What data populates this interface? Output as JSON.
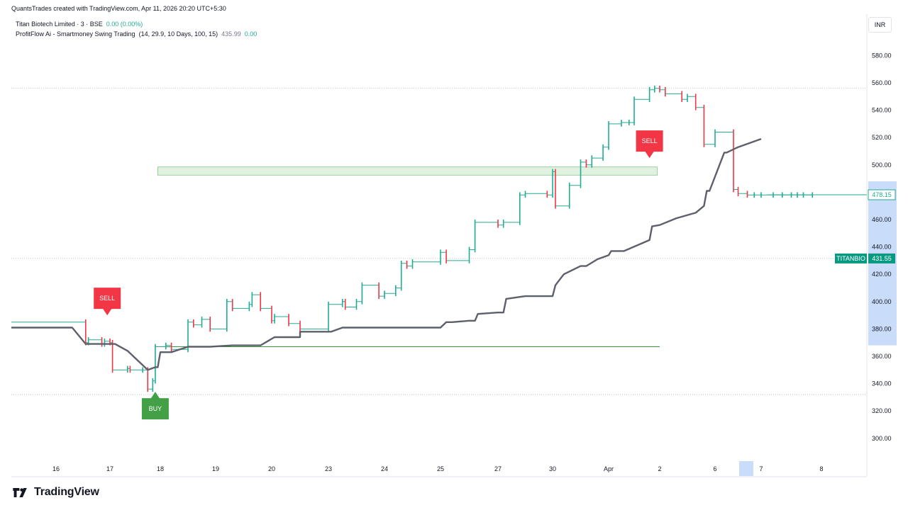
{
  "header": {
    "credit": "QuantsTrades created with TradingView.com, Apr 11, 2026 20:20 UTC+5:30",
    "symbol_line": "Titan Biotech Limited · 3 · BSE",
    "symbol_change": "0.00 (0.00%)",
    "indicator_name": "ProfitFlow Ai - Smartmoney Swing Trading",
    "indicator_params": "(14, 29.9, 10 Days, 100, 15)",
    "indicator_value": "435.99",
    "indicator_change": "0.00"
  },
  "currency_label": "INR",
  "footer": {
    "brand": "TradingView"
  },
  "colors": {
    "up": "#22ab94",
    "down": "#f23645",
    "trail": "#5d606b",
    "signal_sell": "#f23645",
    "signal_buy": "#22ab94",
    "zone": "#c8e6c9",
    "support": "#388e3c"
  },
  "chart_data": {
    "type": "line",
    "ylim": [
      285,
      590
    ],
    "y_ticks": [
      300,
      320,
      340,
      360,
      380,
      400,
      420,
      440,
      460,
      480,
      500,
      520,
      540,
      560,
      580
    ],
    "x_ticks": [
      "16",
      "17",
      "18",
      "19",
      "20",
      "23",
      "24",
      "25",
      "27",
      "30",
      "Apr",
      "2",
      "6",
      "7",
      "8"
    ],
    "price_labels": [
      {
        "symbol": "",
        "value": "478.15",
        "y": 478.15,
        "style": "outline"
      },
      {
        "symbol": "TITANBIO",
        "value": "431.55",
        "y": 431.55,
        "style": "filled"
      }
    ],
    "series": [
      {
        "role": "price",
        "x": [
          0,
          0.55,
          0.6,
          0.85,
          0.9,
          1.0,
          1.05,
          1.35,
          1.4,
          1.65,
          1.75,
          1.85,
          1.9,
          2.1,
          2.2,
          2.5,
          2.6,
          2.75,
          2.9,
          3.2,
          3.3,
          3.6,
          3.65,
          3.8,
          4.0,
          4.05,
          4.3,
          4.5,
          5.0,
          5.25,
          5.3,
          5.5,
          5.6,
          5.9,
          6.0,
          6.2,
          6.3,
          6.4,
          6.5,
          7.0,
          7.1,
          7.5,
          7.6,
          8.0,
          8.1,
          8.4,
          8.5,
          8.9,
          9.0,
          9.05,
          9.3,
          9.5,
          9.6,
          9.7,
          9.9,
          10.0,
          10.25,
          10.4,
          10.5,
          10.8,
          10.9,
          11.0,
          11.1,
          11.4,
          11.5,
          11.65,
          11.8,
          12.0,
          12.4,
          12.5,
          12.7,
          12.85,
          13.0,
          13.2,
          13.35,
          13.5,
          13.6,
          13.7,
          13.85
        ],
        "y": [
          385,
          370,
          372,
          369,
          371,
          370,
          350,
          351,
          350,
          350,
          336,
          342,
          367,
          368,
          365,
          385,
          383,
          387,
          380,
          400,
          395,
          398,
          405,
          395,
          386,
          389,
          384,
          380,
          398,
          400,
          396,
          400,
          412,
          404,
          406,
          410,
          428,
          426,
          429,
          436,
          430,
          438,
          458,
          456,
          458,
          478,
          479,
          478,
          495,
          470,
          485,
          502,
          500,
          505,
          513,
          530,
          531,
          531,
          548,
          555,
          556,
          555,
          552,
          548,
          550,
          542,
          515,
          524,
          482,
          479,
          478,
          478,
          478,
          478,
          478,
          478,
          478,
          478,
          478
        ]
      },
      {
        "role": "trailing-stop",
        "x": [
          0,
          0.3,
          0.55,
          0.85,
          1.0,
          1.1,
          1.35,
          1.75,
          1.9,
          1.95,
          2.0,
          2.2,
          2.5,
          2.9,
          3.3,
          3.8,
          4.05,
          4.5,
          4.5,
          5.05,
          5.25,
          5.35,
          6.0,
          6.1,
          6.35,
          7.0,
          7.1,
          7.2,
          7.5,
          7.6,
          7.65,
          8.0,
          8.1,
          8.15,
          8.5,
          9.0,
          9.05,
          9.2,
          9.5,
          9.6,
          9.8,
          10.0,
          10.05,
          10.3,
          10.8,
          10.85,
          11.0,
          11.3,
          11.65,
          11.8,
          11.85,
          11.9,
          12.2,
          12.25,
          12.5,
          13.0
        ],
        "y": [
          381,
          381,
          369,
          369,
          369,
          369,
          364,
          350,
          352,
          352,
          363,
          363,
          367,
          367,
          368,
          368,
          374,
          374,
          378,
          378,
          381,
          381,
          381,
          381,
          381,
          381,
          385,
          385,
          386,
          386,
          391,
          392,
          392,
          402,
          404,
          404,
          412,
          420,
          426,
          426,
          431,
          434,
          437,
          437,
          445,
          455,
          456,
          461,
          465,
          470,
          481,
          481,
          509,
          509,
          513,
          519
        ]
      }
    ],
    "annotations": [
      {
        "label": "SELL",
        "x": 0.95,
        "y": 390,
        "kind": "sell"
      },
      {
        "label": "BUY",
        "x": 1.9,
        "y": 334,
        "kind": "buy"
      },
      {
        "label": "SELL",
        "x": 10.8,
        "y": 505,
        "kind": "sell"
      }
    ],
    "horizontal_lines": [
      {
        "y": 556,
        "style": "dotted"
      },
      {
        "y": 431.55,
        "style": "dotted"
      },
      {
        "y": 332,
        "style": "dotted"
      },
      {
        "y": 367,
        "x_start": 1.9,
        "x_end": 11.0,
        "style": "support"
      }
    ],
    "zones": [
      {
        "y_low": 492.5,
        "y_high": 498.5,
        "x_start": 1.95,
        "x_end": 10.95
      }
    ],
    "grid": false
  }
}
